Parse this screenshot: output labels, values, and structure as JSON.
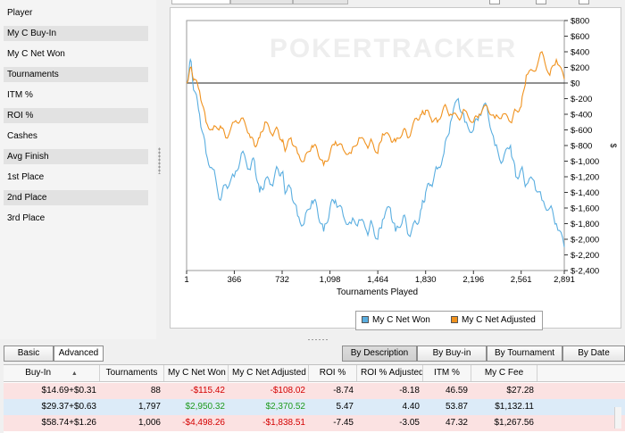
{
  "stats_panel": {
    "rows": [
      {
        "label": "Player",
        "shaded": false
      },
      {
        "label": "My C Buy-In",
        "shaded": true
      },
      {
        "label": "My C Net Won",
        "shaded": false
      },
      {
        "label": "Tournaments",
        "shaded": true
      },
      {
        "label": "ITM %",
        "shaded": false
      },
      {
        "label": "ROI %",
        "shaded": true
      },
      {
        "label": "Cashes",
        "shaded": false
      },
      {
        "label": "Avg Finish",
        "shaded": true
      },
      {
        "label": "1st Place",
        "shaded": false
      },
      {
        "label": "2nd Place",
        "shaded": true
      },
      {
        "label": "3rd Place",
        "shaded": false
      }
    ]
  },
  "chart_panel": {
    "watermark": "POKERTRACKER"
  },
  "chart_data": {
    "type": "line",
    "xlabel": "Tournaments Played",
    "ylabel": "$",
    "xlim": [
      1,
      2891
    ],
    "ylim": [
      -2400,
      800
    ],
    "x_ticks": [
      1,
      366,
      732,
      1098,
      1464,
      1830,
      2196,
      2561,
      2891
    ],
    "x_tick_labels": [
      "1",
      "366",
      "732",
      "1,098",
      "1,464",
      "1,830",
      "2,196",
      "2,561",
      "2,891"
    ],
    "y_ticks": [
      800,
      600,
      400,
      200,
      0,
      -200,
      -400,
      -600,
      -800,
      -1000,
      -1200,
      -1400,
      -1600,
      -1800,
      -2000,
      -2200,
      -2400
    ],
    "y_tick_labels": [
      "$800",
      "$600",
      "$400",
      "$200",
      "$0",
      "$-200",
      "$-400",
      "$-600",
      "$-800",
      "$-1,000",
      "$-1,200",
      "$-1,400",
      "$-1,600",
      "$-1,800",
      "$-2,000",
      "$-2,200",
      "$-2,400"
    ],
    "zero_line": true,
    "grid": false,
    "legend_position": "bottom-left",
    "series": [
      {
        "name": "My C Net Won",
        "color": "#5aaee0",
        "x": [
          1,
          30,
          60,
          100,
          150,
          200,
          260,
          300,
          366,
          420,
          480,
          520,
          560,
          600,
          650,
          700,
          732,
          760,
          800,
          850,
          900,
          960,
          1000,
          1050,
          1098,
          1140,
          1200,
          1260,
          1320,
          1380,
          1420,
          1464,
          1500,
          1560,
          1600,
          1660,
          1700,
          1760,
          1800,
          1830,
          1870,
          1920,
          1970,
          2020,
          2080,
          2130,
          2196,
          2240,
          2300,
          2360,
          2420,
          2480,
          2520,
          2561,
          2600,
          2660,
          2720,
          2780,
          2830,
          2891
        ],
        "y": [
          0,
          300,
          -100,
          -400,
          -900,
          -1100,
          -1500,
          -1300,
          -1200,
          -900,
          -1100,
          -1000,
          -1400,
          -1250,
          -1300,
          -1100,
          -1150,
          -1400,
          -1350,
          -1700,
          -1800,
          -1500,
          -1600,
          -1900,
          -1600,
          -1500,
          -1700,
          -1800,
          -1750,
          -1900,
          -1800,
          -2000,
          -1750,
          -1600,
          -1900,
          -1700,
          -1950,
          -1800,
          -1600,
          -1400,
          -1300,
          -1100,
          -900,
          -500,
          -200,
          -500,
          -600,
          -400,
          -300,
          -800,
          -1000,
          -800,
          -1200,
          -1100,
          -1300,
          -1250,
          -1500,
          -1600,
          -1800,
          -2100
        ]
      },
      {
        "name": "My C Net Adjusted",
        "color": "#f0921e",
        "x": [
          1,
          30,
          60,
          100,
          150,
          200,
          260,
          300,
          366,
          420,
          480,
          520,
          560,
          600,
          650,
          700,
          732,
          760,
          800,
          850,
          900,
          960,
          1000,
          1050,
          1098,
          1140,
          1200,
          1260,
          1320,
          1380,
          1420,
          1464,
          1500,
          1560,
          1600,
          1660,
          1700,
          1760,
          1800,
          1830,
          1870,
          1920,
          1970,
          2020,
          2080,
          2130,
          2196,
          2240,
          2300,
          2360,
          2420,
          2480,
          2520,
          2561,
          2600,
          2660,
          2720,
          2780,
          2830,
          2891
        ],
        "y": [
          0,
          200,
          50,
          -100,
          -500,
          -600,
          -550,
          -700,
          -500,
          -450,
          -650,
          -800,
          -700,
          -500,
          -650,
          -600,
          -750,
          -850,
          -700,
          -900,
          -1000,
          -800,
          -850,
          -1050,
          -900,
          -750,
          -850,
          -900,
          -700,
          -800,
          -750,
          -900,
          -650,
          -700,
          -750,
          -600,
          -700,
          -450,
          -400,
          -350,
          -450,
          -500,
          -300,
          -400,
          -450,
          -350,
          -500,
          -400,
          -300,
          -450,
          -400,
          -500,
          -350,
          -300,
          100,
          150,
          400,
          100,
          300,
          50
        ]
      }
    ]
  },
  "controls": {
    "basic_label": "Basic",
    "advanced_label": "Advanced",
    "by_description": "By Description",
    "by_buyin": "By Buy-in",
    "by_tournament": "By Tournament",
    "by_date": "By Date"
  },
  "table": {
    "columns": [
      "Buy-In",
      "Tournaments",
      "My C Net Won",
      "My C Net Adjusted",
      "ROI %",
      "ROI % Adjusted",
      "ITM %",
      "My C Fee"
    ],
    "sort_arrow": "▲",
    "rows": [
      {
        "buyin": "$14.69+$0.31",
        "tournaments": "88",
        "net_won": "-$115.42",
        "net_adjusted": "-$108.02",
        "roi": "-8.74",
        "roi_adjusted": "-8.18",
        "itm": "46.59",
        "fee": "$27.28",
        "color": "pink",
        "net_sign": "neg",
        "adj_sign": "neg"
      },
      {
        "buyin": "$29.37+$0.63",
        "tournaments": "1,797",
        "net_won": "$2,950.32",
        "net_adjusted": "$2,370.52",
        "roi": "5.47",
        "roi_adjusted": "4.40",
        "itm": "53.87",
        "fee": "$1,132.11",
        "color": "blue",
        "net_sign": "pos",
        "adj_sign": "pos"
      },
      {
        "buyin": "$58.74+$1.26",
        "tournaments": "1,006",
        "net_won": "-$4,498.26",
        "net_adjusted": "-$1,838.51",
        "roi": "-7.45",
        "roi_adjusted": "-3.05",
        "itm": "47.32",
        "fee": "$1,267.56",
        "color": "pink",
        "net_sign": "neg",
        "adj_sign": "neg"
      }
    ]
  }
}
